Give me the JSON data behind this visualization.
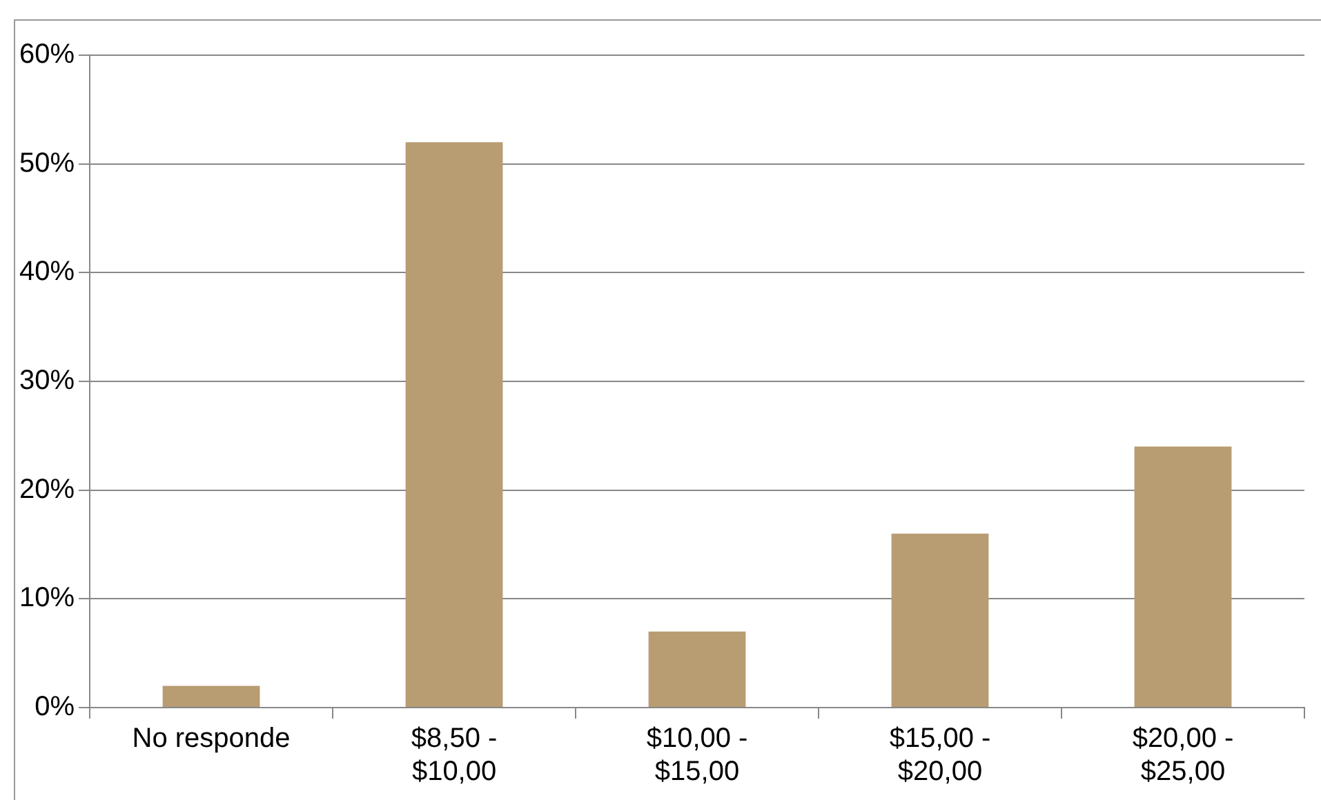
{
  "chart_data": {
    "type": "bar",
    "categories": [
      "No responde",
      "$8,50 - $10,00",
      "$10,00 - $15,00",
      "$15,00 - $20,00",
      "$20,00 - $25,00"
    ],
    "values": [
      2,
      52,
      7,
      16,
      24
    ],
    "color": "#b89c72",
    "ylim": [
      0,
      60
    ],
    "yticks": [
      {
        "value": 0,
        "label": "0%"
      },
      {
        "value": 10,
        "label": "10%"
      },
      {
        "value": 20,
        "label": "20%"
      },
      {
        "value": 30,
        "label": "30%"
      },
      {
        "value": 40,
        "label": "40%"
      },
      {
        "value": 50,
        "label": "50%"
      },
      {
        "value": 60,
        "label": "60%"
      }
    ],
    "grid": "y",
    "legend": false
  }
}
